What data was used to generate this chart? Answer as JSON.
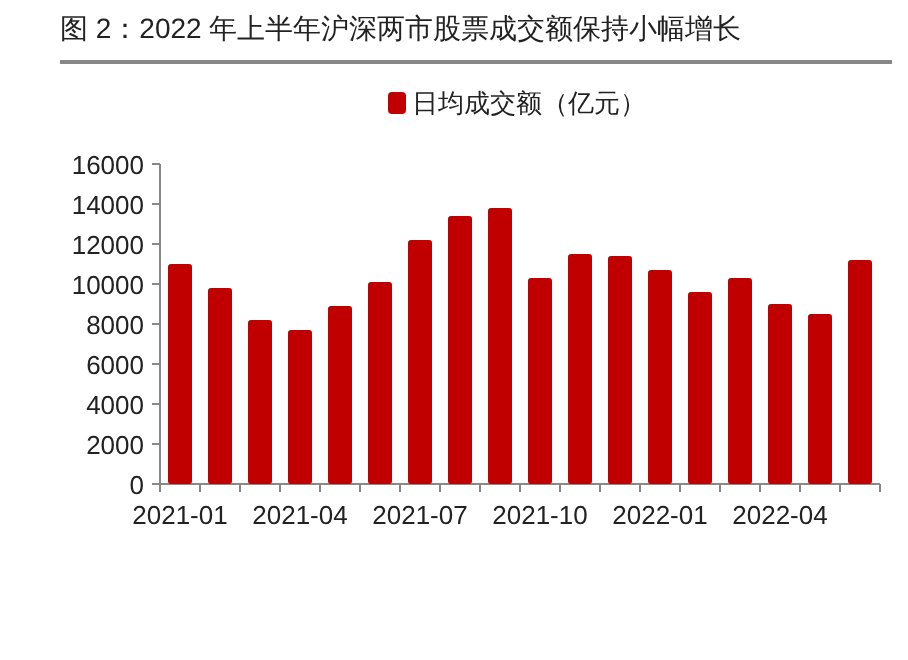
{
  "chart_data": {
    "type": "bar",
    "title": "图 2：2022 年上半年沪深两市股票成交额保持小幅增长",
    "categories": [
      "2021-01",
      null,
      null,
      "2021-04",
      null,
      null,
      "2021-07",
      null,
      null,
      "2021-10",
      null,
      null,
      "2022-01",
      null,
      null,
      "2022-04",
      null,
      null
    ],
    "series": [
      {
        "name": "日均成交额（亿元）",
        "color": "#c00000",
        "values": [
          11000,
          9800,
          8200,
          7700,
          8900,
          10100,
          12200,
          13400,
          13800,
          10300,
          11500,
          11400,
          10700,
          9600,
          10300,
          9000,
          8500,
          11200
        ]
      }
    ],
    "ylim": [
      0,
      16000
    ],
    "yticks": [
      0,
      2000,
      4000,
      6000,
      8000,
      10000,
      12000,
      14000,
      16000
    ],
    "grid": false,
    "legend": "top"
  }
}
